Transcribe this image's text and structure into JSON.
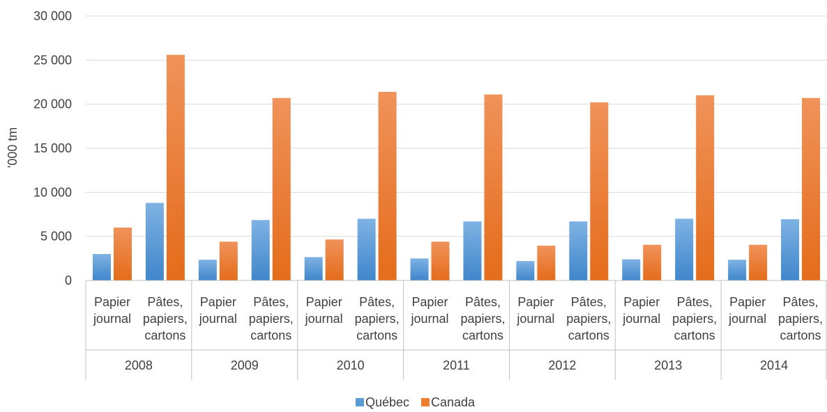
{
  "chart_data": {
    "type": "bar",
    "ylabel": "'000 tm",
    "ylim": [
      0,
      30000
    ],
    "yticks": [
      0,
      5000,
      10000,
      15000,
      20000,
      25000,
      30000
    ],
    "ytick_labels": [
      "0",
      "5 000",
      "10 000",
      "15 000",
      "20 000",
      "25 000",
      "30 000"
    ],
    "grid": true,
    "legend_position": "bottom",
    "years": [
      "2008",
      "2009",
      "2010",
      "2011",
      "2012",
      "2013",
      "2014"
    ],
    "subcategories": [
      [
        "Papier",
        "journal"
      ],
      [
        "Pâtes,",
        "papiers,",
        "cartons"
      ]
    ],
    "series": [
      {
        "name": "Québec",
        "color": "#5b9bd5",
        "values": [
          [
            3000,
            8800
          ],
          [
            2350,
            6850
          ],
          [
            2650,
            7000
          ],
          [
            2500,
            6700
          ],
          [
            2200,
            6700
          ],
          [
            2400,
            7000
          ],
          [
            2350,
            6950
          ]
        ]
      },
      {
        "name": "Canada",
        "color": "#ed7d31",
        "values": [
          [
            6000,
            25600
          ],
          [
            4400,
            20700
          ],
          [
            4650,
            21400
          ],
          [
            4400,
            21100
          ],
          [
            3950,
            20200
          ],
          [
            4050,
            21000
          ],
          [
            4050,
            20700
          ]
        ]
      }
    ]
  }
}
